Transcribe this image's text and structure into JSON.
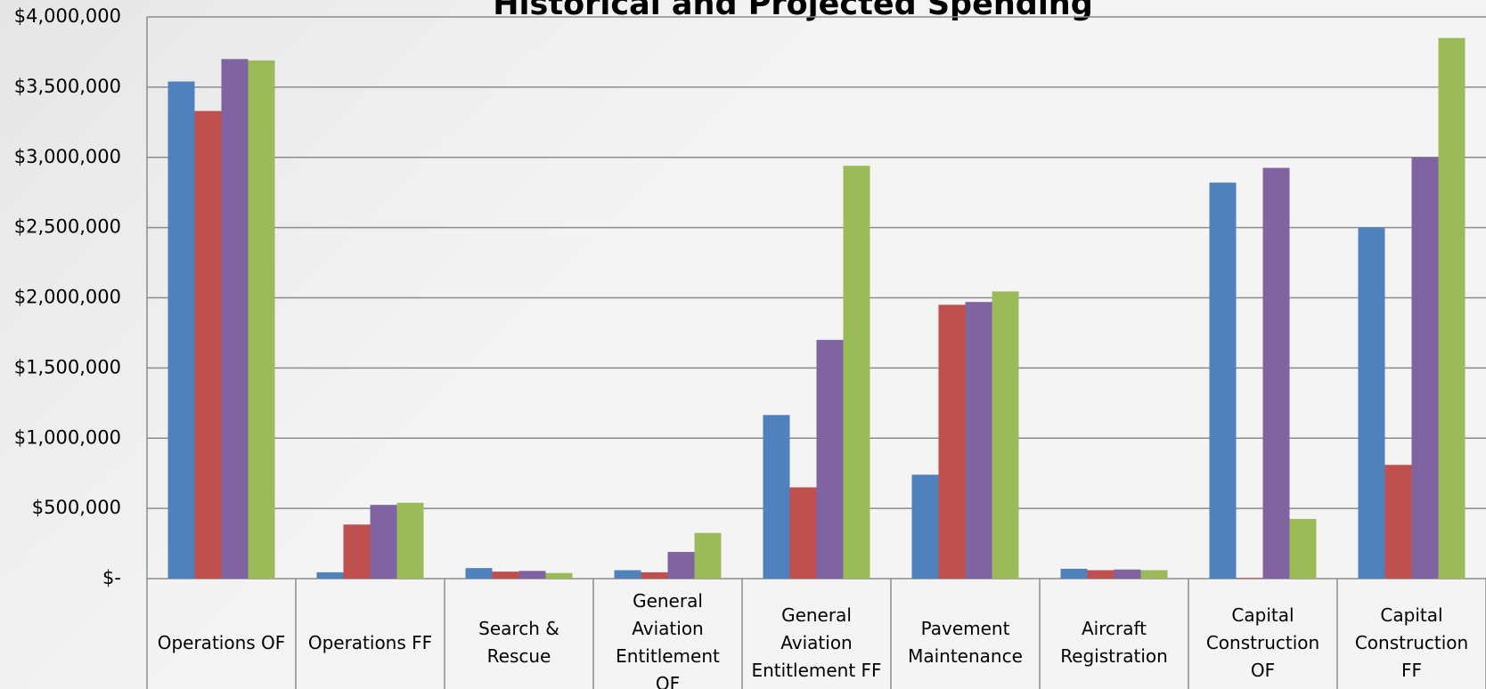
{
  "chart_data": {
    "type": "bar",
    "title": "Historical and Projected Spending",
    "categories": [
      "Operations OF",
      "Operations FF",
      "Search & Rescue",
      "General Aviation Entitlement OF",
      "General Aviation Entitlement FF",
      "Pavement Maintenance",
      "Aircraft Registration",
      "Capital Construction OF",
      "Capital Construction FF"
    ],
    "series": [
      {
        "color": "#4f81bd",
        "values": [
          3540000,
          45000,
          75000,
          60000,
          1165000,
          740000,
          70000,
          2820000,
          2500000
        ]
      },
      {
        "color": "#c0504d",
        "values": [
          3330000,
          385000,
          50000,
          45000,
          650000,
          1950000,
          60000,
          5000,
          810000
        ]
      },
      {
        "color": "#8064a2",
        "values": [
          3700000,
          525000,
          55000,
          190000,
          1700000,
          1970000,
          65000,
          2925000,
          3000000
        ]
      },
      {
        "color": "#9bbb59",
        "values": [
          3690000,
          540000,
          40000,
          325000,
          2940000,
          2045000,
          60000,
          425000,
          3850000
        ]
      }
    ],
    "ylim": [
      0,
      4000000
    ],
    "yticks": [
      {
        "value": 0,
        "label": "$-"
      },
      {
        "value": 500000,
        "label": "$500,000"
      },
      {
        "value": 1000000,
        "label": "$1,000,000"
      },
      {
        "value": 1500000,
        "label": "$1,500,000"
      },
      {
        "value": 2000000,
        "label": "$2,000,000"
      },
      {
        "value": 2500000,
        "label": "$2,500,000"
      },
      {
        "value": 3000000,
        "label": "$3,000,000"
      },
      {
        "value": 3500000,
        "label": "$3,500,000"
      },
      {
        "value": 4000000,
        "label": "$4,000,000"
      }
    ],
    "grid": true
  }
}
